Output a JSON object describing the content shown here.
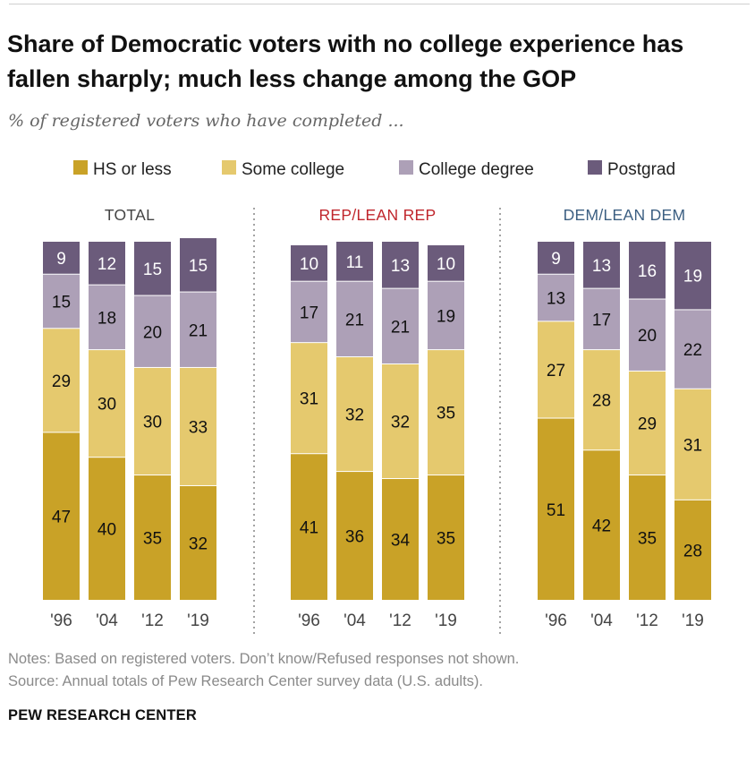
{
  "chart_data": {
    "type": "stacked-bar",
    "title": "Share of Democratic voters with no college experience has fallen sharply; much less change among the GOP",
    "subtitle": "% of registered voters who have completed ...",
    "categories": [
      "'96",
      "'04",
      "'12",
      "'19"
    ],
    "legend": [
      {
        "name": "HS or less",
        "color": "#c9a227"
      },
      {
        "name": "Some college",
        "color": "#e5c96e"
      },
      {
        "name": "College degree",
        "color": "#ada0b7"
      },
      {
        "name": "Postgrad",
        "color": "#6b5b7b"
      }
    ],
    "panels": [
      {
        "label": "TOTAL",
        "label_color": "#444444",
        "series": [
          {
            "name": "HS or less",
            "values": [
              47,
              40,
              35,
              32
            ]
          },
          {
            "name": "Some college",
            "values": [
              29,
              30,
              30,
              33
            ]
          },
          {
            "name": "College degree",
            "values": [
              15,
              18,
              20,
              21
            ]
          },
          {
            "name": "Postgrad",
            "values": [
              9,
              12,
              15,
              15
            ]
          }
        ]
      },
      {
        "label": "REP/LEAN REP",
        "label_color": "#c0262c",
        "series": [
          {
            "name": "HS or less",
            "values": [
              41,
              36,
              34,
              35
            ]
          },
          {
            "name": "Some college",
            "values": [
              31,
              32,
              32,
              35
            ]
          },
          {
            "name": "College degree",
            "values": [
              17,
              21,
              21,
              19
            ]
          },
          {
            "name": "Postgrad",
            "values": [
              10,
              11,
              13,
              10
            ]
          }
        ]
      },
      {
        "label": "DEM/LEAN DEM",
        "label_color": "#3c5f82",
        "series": [
          {
            "name": "HS or less",
            "values": [
              51,
              42,
              35,
              28
            ]
          },
          {
            "name": "Some college",
            "values": [
              27,
              28,
              29,
              31
            ]
          },
          {
            "name": "College degree",
            "values": [
              13,
              17,
              20,
              22
            ]
          },
          {
            "name": "Postgrad",
            "values": [
              9,
              13,
              16,
              19
            ]
          }
        ]
      }
    ]
  },
  "notes": {
    "line1": "Notes: Based on registered voters. Don’t know/Refused responses not shown.",
    "line2": "Source: Annual totals of Pew Research Center survey data (U.S. adults)."
  },
  "brand": "PEW RESEARCH CENTER"
}
